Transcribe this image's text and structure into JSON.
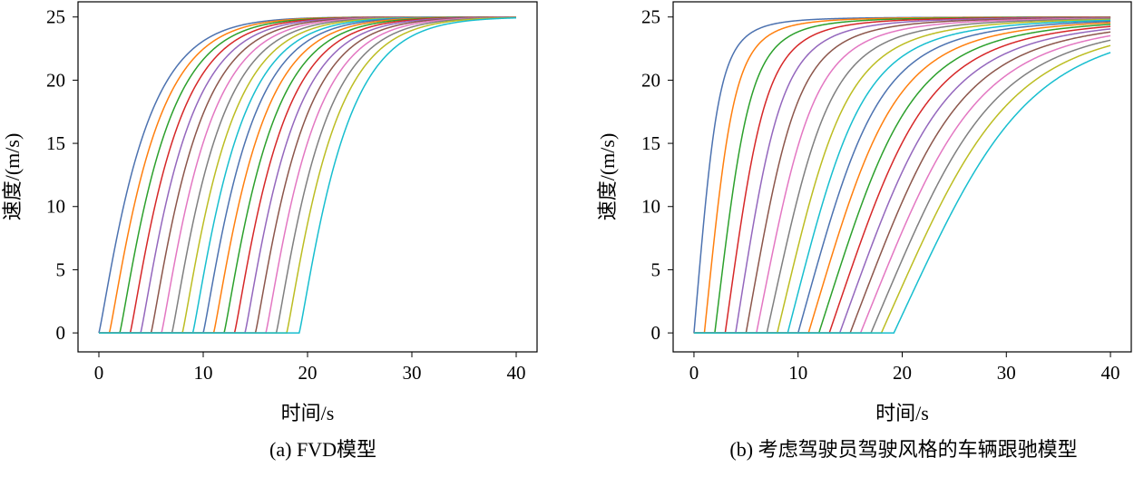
{
  "chart_data": [
    {
      "type": "line",
      "caption": "(a) FVD模型",
      "xlabel": "时间/s",
      "ylabel": "速度/(m/s)",
      "xlim": [
        -2,
        42
      ],
      "ylim": [
        -1.5,
        26.2
      ],
      "xticks": [
        0,
        10,
        20,
        30,
        40
      ],
      "yticks": [
        0,
        5,
        10,
        15,
        20,
        25
      ],
      "grid": false,
      "legend": "none",
      "v_max": 25,
      "x_end": 40,
      "start_times": [
        0,
        1.0,
        2.0,
        3.0,
        4.0,
        5.0,
        6.0,
        7.0,
        8.0,
        9.0,
        10.0,
        11.0,
        12.0,
        13.0,
        14.0,
        15.0,
        16.0,
        17.0,
        18.0,
        19.2
      ],
      "series_model": "fvd"
    },
    {
      "type": "line",
      "caption": "(b) 考虑驾驶员驾驶风格的车辆跟驰模型",
      "xlabel": "时间/s",
      "ylabel": "速度/(m/s)",
      "xlim": [
        -2,
        42
      ],
      "ylim": [
        -1.5,
        26.2
      ],
      "xticks": [
        0,
        10,
        20,
        30,
        40
      ],
      "yticks": [
        0,
        5,
        10,
        15,
        20,
        25
      ],
      "grid": false,
      "legend": "none",
      "v_max": 25,
      "x_end": 40,
      "start_times": [
        0,
        1.0,
        2.0,
        3.0,
        4.0,
        5.0,
        6.0,
        7.0,
        8.0,
        9.0,
        10.0,
        11.0,
        12.0,
        13.0,
        14.0,
        15.0,
        16.0,
        17.0,
        18.0,
        19.2
      ],
      "series_model": "style"
    }
  ],
  "colors": [
    "#4c72b0",
    "#ff7f0e",
    "#2ca02c",
    "#d62728",
    "#9467bd",
    "#8c564b",
    "#e377c2",
    "#7f7f7f",
    "#bcbd22",
    "#17becf",
    "#4c72b0",
    "#ff7f0e",
    "#2ca02c",
    "#d62728",
    "#9467bd",
    "#8c564b",
    "#e377c2",
    "#7f7f7f",
    "#bcbd22",
    "#17becf"
  ]
}
